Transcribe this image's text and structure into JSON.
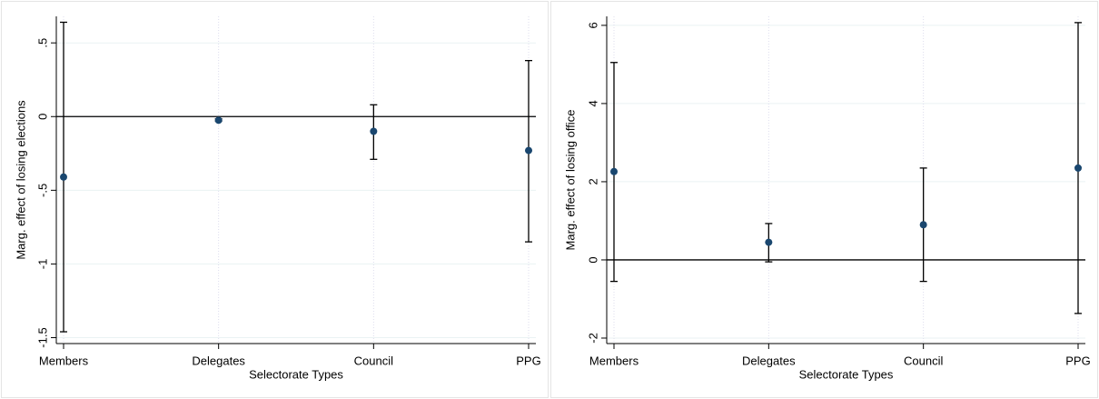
{
  "chart_data": [
    {
      "type": "errorbar",
      "x_label": "Selectorate Types",
      "y_label": "Marg. effect of losing elections",
      "categories": [
        "Members",
        "Delegates",
        "Council",
        "PPG"
      ],
      "values": [
        -0.41,
        -0.025,
        -0.1,
        -0.23
      ],
      "lower": [
        -1.46,
        -0.03,
        -0.29,
        -0.85
      ],
      "upper": [
        0.64,
        -0.015,
        0.08,
        0.38
      ],
      "color": "#1a476f",
      "ylim": [
        -1.54,
        0.68
      ],
      "yticks": [
        -1.5,
        -1,
        {
          "value": -0.5,
          "label": "-.5"
        },
        0,
        {
          "value": 0.5,
          "label": ".5"
        }
      ],
      "grid": true
    },
    {
      "type": "errorbar",
      "x_label": "Selectorate Types",
      "y_label": "Marg. effect of losing office",
      "categories": [
        "Members",
        "Delegates",
        "Council",
        "PPG"
      ],
      "values": [
        2.26,
        0.45,
        0.9,
        2.35
      ],
      "lower": [
        -0.55,
        -0.05,
        -0.55,
        -1.37
      ],
      "upper": [
        5.05,
        0.93,
        2.35,
        6.07
      ],
      "color": "#1a476f",
      "ylim": [
        -2.14,
        6.23
      ],
      "yticks": [
        -2,
        0,
        2,
        4,
        6
      ],
      "grid": true
    }
  ]
}
